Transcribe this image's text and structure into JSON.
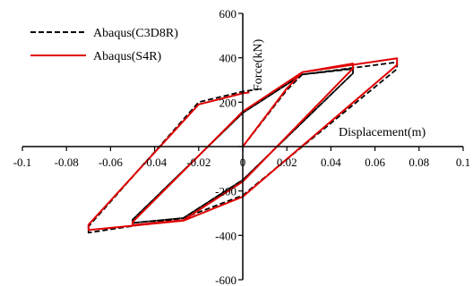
{
  "chart_data": {
    "type": "line",
    "title": "",
    "xlabel": "Displacement(m)",
    "ylabel": "Force(kN)",
    "xlim": [
      -0.1,
      0.1
    ],
    "ylim": [
      -600,
      600
    ],
    "xticks": [
      -0.1,
      -0.08,
      -0.06,
      -0.04,
      -0.02,
      0,
      0.02,
      0.04,
      0.06,
      0.08,
      0.1
    ],
    "xtick_labels": [
      "-0.1",
      "-0.08",
      "-0.06",
      "-0.04",
      "-0.02",
      "0",
      "0.02",
      "0.04",
      "0.06",
      "0.08",
      "0.1"
    ],
    "yticks": [
      -600,
      -400,
      -200,
      0,
      200,
      400,
      600
    ],
    "ytick_labels": [
      "-600",
      "-400",
      "-200",
      "0",
      "200",
      "400",
      "600"
    ],
    "grid": false,
    "legend_position": "top-left",
    "series": [
      {
        "name": "Abaqus(C3D8R)",
        "color": "#000000",
        "dash": "dashed",
        "x": [
          0,
          0.02,
          0.027,
          0.05,
          0.05,
          0.0,
          -0.027,
          -0.05,
          -0.05,
          0.0,
          0.027,
          0.05,
          0.05,
          0.0,
          -0.027,
          -0.05,
          -0.05,
          0.0,
          0.027,
          0.07,
          0.07,
          0.0,
          -0.027,
          -0.07,
          -0.07,
          -0.02,
          0.0,
          0.007
        ],
        "y": [
          0,
          255,
          325,
          350,
          330,
          -150,
          -322,
          -344,
          -330,
          152,
          325,
          352,
          330,
          -150,
          -322,
          -344,
          -330,
          152,
          325,
          380,
          350,
          -220,
          -322,
          -388,
          -360,
          200,
          248,
          258
        ]
      },
      {
        "name": "Abaqus(S4R)",
        "color": "#e00000",
        "dash": "solid",
        "x": [
          0,
          0.02,
          0.027,
          0.05,
          0.05,
          0.0,
          -0.027,
          -0.05,
          -0.05,
          0.0,
          0.027,
          0.05,
          0.05,
          0.0,
          -0.027,
          -0.05,
          -0.05,
          0.0,
          0.027,
          0.07,
          0.07,
          0.0,
          -0.027,
          -0.07,
          -0.07,
          -0.02,
          0.0,
          0.003
        ],
        "y": [
          0,
          262,
          335,
          372,
          352,
          -158,
          -332,
          -354,
          -340,
          158,
          335,
          374,
          352,
          -158,
          -332,
          -354,
          -340,
          158,
          335,
          398,
          368,
          -226,
          -334,
          -376,
          -352,
          190,
          240,
          244
        ]
      }
    ]
  }
}
